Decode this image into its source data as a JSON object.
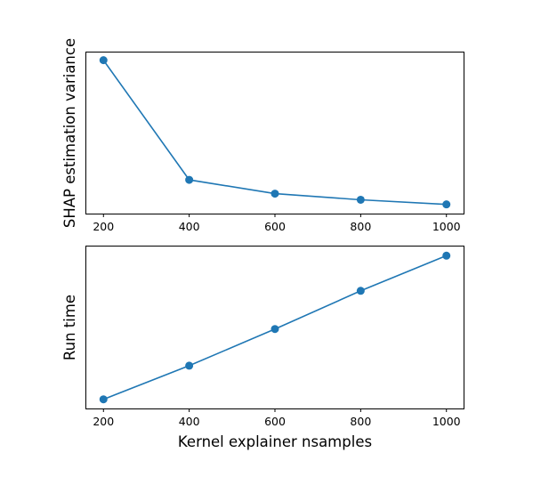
{
  "chart_data": [
    {
      "type": "line",
      "title": "",
      "xlabel": "",
      "ylabel": "SHAP estimation variance",
      "x": [
        200,
        400,
        600,
        800,
        1000
      ],
      "x_ticks": [
        "200",
        "400",
        "600",
        "800",
        "1000"
      ],
      "xlim": [
        160,
        1040
      ],
      "ylim": [
        0,
        1.05
      ],
      "y_ticks_visible": false,
      "series": [
        {
          "values": [
            1.0,
            0.22,
            0.13,
            0.09,
            0.06
          ],
          "color": "#1f77b4",
          "marker": "circle"
        }
      ],
      "grid": false,
      "legend": "none"
    },
    {
      "type": "line",
      "title": "",
      "xlabel": "Kernel explainer nsamples",
      "ylabel": "Run time",
      "x": [
        200,
        400,
        600,
        800,
        1000
      ],
      "x_ticks": [
        "200",
        "400",
        "600",
        "800",
        "1000"
      ],
      "xlim": [
        160,
        1040
      ],
      "ylim": [
        0,
        1.06
      ],
      "y_ticks_visible": false,
      "series": [
        {
          "values": [
            0.06,
            0.28,
            0.52,
            0.77,
            1.0
          ],
          "color": "#1f77b4",
          "marker": "circle"
        }
      ],
      "grid": false,
      "legend": "none"
    }
  ]
}
